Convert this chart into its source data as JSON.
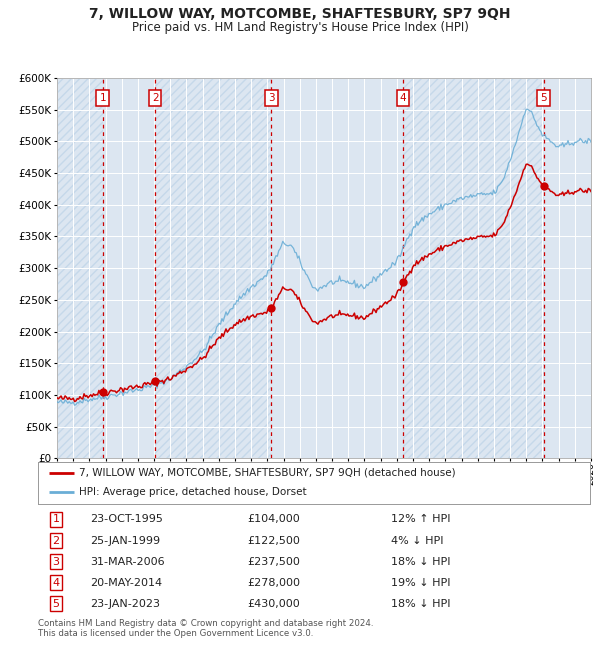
{
  "title": "7, WILLOW WAY, MOTCOMBE, SHAFTESBURY, SP7 9QH",
  "subtitle": "Price paid vs. HM Land Registry's House Price Index (HPI)",
  "title_fontsize": 10,
  "subtitle_fontsize": 8.5,
  "hpi_color": "#6aaed6",
  "sale_color": "#cc0000",
  "background_color": "#ffffff",
  "chart_bg_color": "#dce6f1",
  "ylim": [
    0,
    600000
  ],
  "sale_transactions": [
    {
      "date_num": 1995.82,
      "price": 104000,
      "label": "1"
    },
    {
      "date_num": 1999.07,
      "price": 122500,
      "label": "2"
    },
    {
      "date_num": 2006.25,
      "price": 237500,
      "label": "3"
    },
    {
      "date_num": 2014.38,
      "price": 278000,
      "label": "4"
    },
    {
      "date_num": 2023.07,
      "price": 430000,
      "label": "5"
    }
  ],
  "legend_entries": [
    "7, WILLOW WAY, MOTCOMBE, SHAFTESBURY, SP7 9QH (detached house)",
    "HPI: Average price, detached house, Dorset"
  ],
  "table_rows": [
    {
      "num": "1",
      "date": "23-OCT-1995",
      "price": "£104,000",
      "hpi": "12% ↑ HPI"
    },
    {
      "num": "2",
      "date": "25-JAN-1999",
      "price": "£122,500",
      "hpi": "4% ↓ HPI"
    },
    {
      "num": "3",
      "date": "31-MAR-2006",
      "price": "£237,500",
      "hpi": "18% ↓ HPI"
    },
    {
      "num": "4",
      "date": "20-MAY-2014",
      "price": "£278,000",
      "hpi": "19% ↓ HPI"
    },
    {
      "num": "5",
      "date": "23-JAN-2023",
      "price": "£430,000",
      "hpi": "18% ↓ HPI"
    }
  ],
  "footer": "Contains HM Land Registry data © Crown copyright and database right 2024.\nThis data is licensed under the Open Government Licence v3.0.",
  "xmin": 1993,
  "xmax": 2026,
  "hpi_anchors_x": [
    1993,
    1994,
    1995,
    1996,
    1997,
    1998,
    1999,
    2000,
    2001,
    2002,
    2003,
    2004,
    2005,
    2006,
    2007,
    2007.5,
    2008,
    2008.5,
    2009,
    2009.5,
    2010,
    2011,
    2012,
    2013,
    2014,
    2015,
    2016,
    2017,
    2018,
    2019,
    2020,
    2020.5,
    2021,
    2021.5,
    2022.0,
    2022.3,
    2022.6,
    2023.0,
    2023.5,
    2024.0,
    2025.0,
    2026.0
  ],
  "hpi_anchors_y": [
    88000,
    88000,
    93000,
    97000,
    103000,
    108000,
    115000,
    125000,
    145000,
    168000,
    210000,
    245000,
    270000,
    290000,
    340000,
    335000,
    310000,
    285000,
    265000,
    272000,
    278000,
    278000,
    270000,
    290000,
    310000,
    365000,
    385000,
    400000,
    410000,
    415000,
    418000,
    435000,
    470000,
    510000,
    555000,
    545000,
    530000,
    510000,
    500000,
    490000,
    500000,
    500000
  ]
}
